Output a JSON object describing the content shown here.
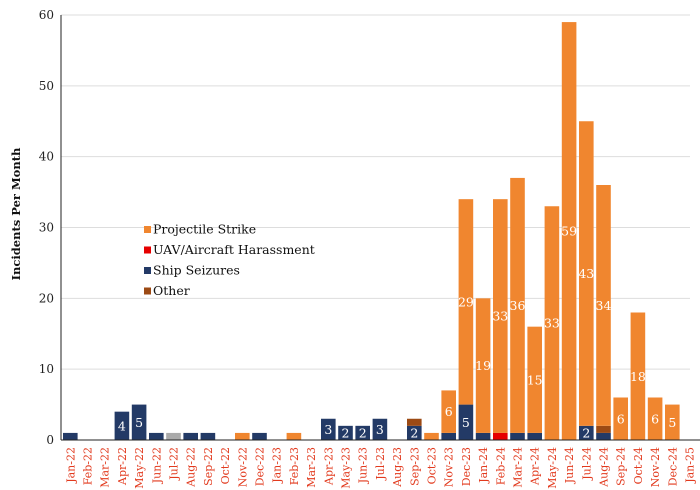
{
  "chart_data": {
    "type": "bar",
    "stacked": true,
    "ylabel": "Incidents Per Month",
    "ylim": [
      0,
      60
    ],
    "yticks": [
      0,
      10,
      20,
      30,
      40,
      50,
      60
    ],
    "grid": true,
    "legend": "center-left",
    "categories": [
      "Jan-22",
      "Feb-22",
      "Mar-22",
      "Apr-22",
      "May-22",
      "Jun-22",
      "Jul-22",
      "Aug-22",
      "Sep-22",
      "Oct-22",
      "Nov-22",
      "Dec-22",
      "Jan-23",
      "Feb-23",
      "Mar-23",
      "Apr-23",
      "May-23",
      "Jun-23",
      "Jul-23",
      "Aug-23",
      "Sep-23",
      "Oct-23",
      "Nov-23",
      "Dec-23",
      "Jan-24",
      "Feb-24",
      "Mar-24",
      "Apr-24",
      "May-24",
      "Jun-24",
      "Jul-24",
      "Aug-24",
      "Sep-24",
      "Oct-24",
      "Nov-24",
      "Dec-24",
      "Jan-25",
      "Feb-25"
    ],
    "series": [
      {
        "name": "Ship Seizures",
        "color": "#233a66",
        "values": [
          1,
          0,
          0,
          4,
          5,
          1,
          0,
          1,
          1,
          0,
          0,
          1,
          0,
          0,
          0,
          3,
          2,
          2,
          3,
          0,
          2,
          0,
          1,
          5,
          1,
          0,
          1,
          1,
          0,
          0,
          2,
          1,
          0,
          0,
          0,
          0,
          0,
          0
        ]
      },
      {
        "name": "Other",
        "color": "#9c4a14",
        "values": [
          0,
          0,
          0,
          0,
          0,
          0,
          0,
          0,
          0,
          0,
          0,
          0,
          0,
          0,
          0,
          0,
          0,
          0,
          0,
          0,
          1,
          0,
          0,
          0,
          0,
          0,
          0,
          0,
          0,
          0,
          0,
          1,
          0,
          0,
          0,
          0,
          0,
          0
        ]
      },
      {
        "name": "UAV/Aircraft Harassment",
        "color": "#e60000",
        "values": [
          0,
          0,
          0,
          0,
          0,
          0,
          0,
          0,
          0,
          0,
          0,
          0,
          0,
          0,
          0,
          0,
          0,
          0,
          0,
          0,
          0,
          0,
          0,
          0,
          0,
          1,
          0,
          0,
          0,
          0,
          0,
          0,
          0,
          0,
          0,
          0,
          0,
          0
        ]
      },
      {
        "name": "Projectile Strike",
        "color": "#f0862f",
        "values": [
          0,
          0,
          0,
          0,
          0,
          0,
          0,
          0,
          0,
          0,
          1,
          0,
          0,
          1,
          0,
          0,
          0,
          0,
          0,
          0,
          0,
          1,
          6,
          29,
          19,
          33,
          36,
          15,
          33,
          59,
          43,
          34,
          6,
          18,
          6,
          5,
          0,
          0
        ]
      },
      {
        "name": "",
        "color": "#aaaaaa",
        "values": [
          0,
          0,
          0,
          0,
          0,
          0,
          1,
          0,
          0,
          0,
          0,
          0,
          0,
          0,
          0,
          0,
          0,
          0,
          0,
          0,
          0,
          0,
          0,
          0,
          0,
          0,
          0,
          0,
          0,
          0,
          0,
          0,
          0,
          0,
          0,
          0,
          0,
          0
        ]
      }
    ],
    "data_labels": [
      {
        "category": "Apr-22",
        "series": "Ship Seizures",
        "text": "4"
      },
      {
        "category": "May-22",
        "series": "Ship Seizures",
        "text": "5"
      },
      {
        "category": "Apr-23",
        "series": "Ship Seizures",
        "text": "3"
      },
      {
        "category": "May-23",
        "series": "Ship Seizures",
        "text": "2"
      },
      {
        "category": "Jun-23",
        "series": "Ship Seizures",
        "text": "2"
      },
      {
        "category": "Jul-23",
        "series": "Ship Seizures",
        "text": "3"
      },
      {
        "category": "Sep-23",
        "series": "Ship Seizures",
        "text": "2"
      },
      {
        "category": "Dec-23",
        "series": "Ship Seizures",
        "text": "5"
      },
      {
        "category": "Jul-24",
        "series": "Ship Seizures",
        "text": "2"
      },
      {
        "category": "Nov-23",
        "series": "Projectile Strike",
        "text": "6"
      },
      {
        "category": "Dec-23",
        "series": "Projectile Strike",
        "text": "29"
      },
      {
        "category": "Jan-24",
        "series": "Projectile Strike",
        "text": "19"
      },
      {
        "category": "Feb-24",
        "series": "Projectile Strike",
        "text": "33"
      },
      {
        "category": "Mar-24",
        "series": "Projectile Strike",
        "text": "36"
      },
      {
        "category": "Apr-24",
        "series": "Projectile Strike",
        "text": "15"
      },
      {
        "category": "May-24",
        "series": "Projectile Strike",
        "text": "33"
      },
      {
        "category": "Jun-24",
        "series": "Projectile Strike",
        "text": "59"
      },
      {
        "category": "Jul-24",
        "series": "Projectile Strike",
        "text": "43"
      },
      {
        "category": "Aug-24",
        "series": "Projectile Strike",
        "text": "34"
      },
      {
        "category": "Sep-24",
        "series": "Projectile Strike",
        "text": "6"
      },
      {
        "category": "Oct-24",
        "series": "Projectile Strike",
        "text": "18"
      },
      {
        "category": "Nov-24",
        "series": "Projectile Strike",
        "text": "6"
      },
      {
        "category": "Dec-24",
        "series": "Projectile Strike",
        "text": "5"
      }
    ],
    "legend_entries": [
      {
        "name": "Projectile Strike",
        "color": "#f0862f"
      },
      {
        "name": "UAV/Aircraft Harassment",
        "color": "#e60000"
      },
      {
        "name": "Ship Seizures",
        "color": "#233a66"
      },
      {
        "name": "Other",
        "color": "#9c4a14"
      }
    ]
  }
}
